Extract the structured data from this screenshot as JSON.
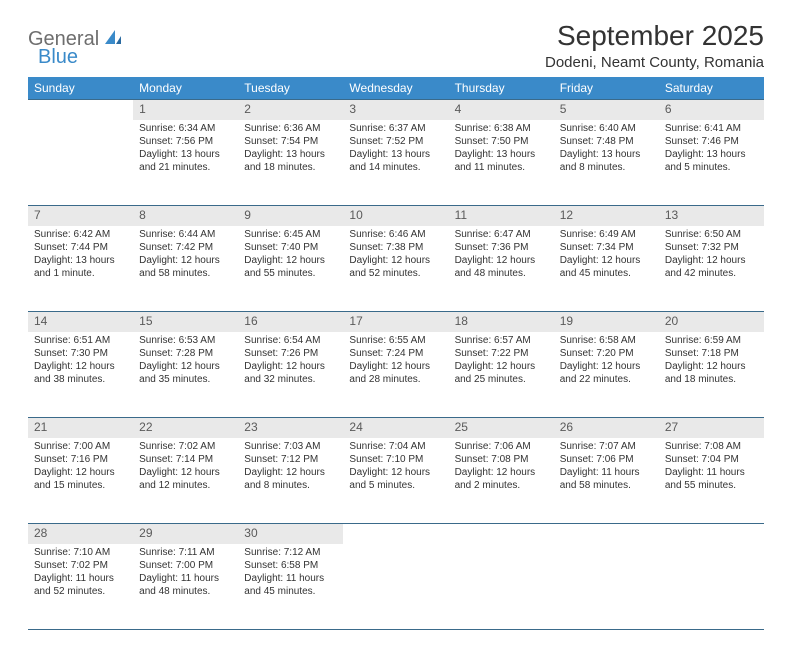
{
  "logo": {
    "text1": "General",
    "text2": "Blue"
  },
  "title": "September 2025",
  "location": "Dodeni, Neamt County, Romania",
  "colors": {
    "header_bg": "#3a8ac9",
    "header_text": "#ffffff",
    "daynum_bg": "#e9e9e9",
    "daynum_text": "#5a5a5a",
    "cell_text": "#333333",
    "rule": "#3a6a8a",
    "logo_gray": "#6e6e6e",
    "logo_blue": "#3a8ac9"
  },
  "weekdays": [
    "Sunday",
    "Monday",
    "Tuesday",
    "Wednesday",
    "Thursday",
    "Friday",
    "Saturday"
  ],
  "weeks": [
    {
      "nums": [
        "",
        "1",
        "2",
        "3",
        "4",
        "5",
        "6"
      ],
      "cells": [
        {
          "lines": []
        },
        {
          "lines": [
            "Sunrise: 6:34 AM",
            "Sunset: 7:56 PM",
            "Daylight: 13 hours and 21 minutes."
          ]
        },
        {
          "lines": [
            "Sunrise: 6:36 AM",
            "Sunset: 7:54 PM",
            "Daylight: 13 hours and 18 minutes."
          ]
        },
        {
          "lines": [
            "Sunrise: 6:37 AM",
            "Sunset: 7:52 PM",
            "Daylight: 13 hours and 14 minutes."
          ]
        },
        {
          "lines": [
            "Sunrise: 6:38 AM",
            "Sunset: 7:50 PM",
            "Daylight: 13 hours and 11 minutes."
          ]
        },
        {
          "lines": [
            "Sunrise: 6:40 AM",
            "Sunset: 7:48 PM",
            "Daylight: 13 hours and 8 minutes."
          ]
        },
        {
          "lines": [
            "Sunrise: 6:41 AM",
            "Sunset: 7:46 PM",
            "Daylight: 13 hours and 5 minutes."
          ]
        }
      ]
    },
    {
      "nums": [
        "7",
        "8",
        "9",
        "10",
        "11",
        "12",
        "13"
      ],
      "cells": [
        {
          "lines": [
            "Sunrise: 6:42 AM",
            "Sunset: 7:44 PM",
            "Daylight: 13 hours and 1 minute."
          ]
        },
        {
          "lines": [
            "Sunrise: 6:44 AM",
            "Sunset: 7:42 PM",
            "Daylight: 12 hours and 58 minutes."
          ]
        },
        {
          "lines": [
            "Sunrise: 6:45 AM",
            "Sunset: 7:40 PM",
            "Daylight: 12 hours and 55 minutes."
          ]
        },
        {
          "lines": [
            "Sunrise: 6:46 AM",
            "Sunset: 7:38 PM",
            "Daylight: 12 hours and 52 minutes."
          ]
        },
        {
          "lines": [
            "Sunrise: 6:47 AM",
            "Sunset: 7:36 PM",
            "Daylight: 12 hours and 48 minutes."
          ]
        },
        {
          "lines": [
            "Sunrise: 6:49 AM",
            "Sunset: 7:34 PM",
            "Daylight: 12 hours and 45 minutes."
          ]
        },
        {
          "lines": [
            "Sunrise: 6:50 AM",
            "Sunset: 7:32 PM",
            "Daylight: 12 hours and 42 minutes."
          ]
        }
      ]
    },
    {
      "nums": [
        "14",
        "15",
        "16",
        "17",
        "18",
        "19",
        "20"
      ],
      "cells": [
        {
          "lines": [
            "Sunrise: 6:51 AM",
            "Sunset: 7:30 PM",
            "Daylight: 12 hours and 38 minutes."
          ]
        },
        {
          "lines": [
            "Sunrise: 6:53 AM",
            "Sunset: 7:28 PM",
            "Daylight: 12 hours and 35 minutes."
          ]
        },
        {
          "lines": [
            "Sunrise: 6:54 AM",
            "Sunset: 7:26 PM",
            "Daylight: 12 hours and 32 minutes."
          ]
        },
        {
          "lines": [
            "Sunrise: 6:55 AM",
            "Sunset: 7:24 PM",
            "Daylight: 12 hours and 28 minutes."
          ]
        },
        {
          "lines": [
            "Sunrise: 6:57 AM",
            "Sunset: 7:22 PM",
            "Daylight: 12 hours and 25 minutes."
          ]
        },
        {
          "lines": [
            "Sunrise: 6:58 AM",
            "Sunset: 7:20 PM",
            "Daylight: 12 hours and 22 minutes."
          ]
        },
        {
          "lines": [
            "Sunrise: 6:59 AM",
            "Sunset: 7:18 PM",
            "Daylight: 12 hours and 18 minutes."
          ]
        }
      ]
    },
    {
      "nums": [
        "21",
        "22",
        "23",
        "24",
        "25",
        "26",
        "27"
      ],
      "cells": [
        {
          "lines": [
            "Sunrise: 7:00 AM",
            "Sunset: 7:16 PM",
            "Daylight: 12 hours and 15 minutes."
          ]
        },
        {
          "lines": [
            "Sunrise: 7:02 AM",
            "Sunset: 7:14 PM",
            "Daylight: 12 hours and 12 minutes."
          ]
        },
        {
          "lines": [
            "Sunrise: 7:03 AM",
            "Sunset: 7:12 PM",
            "Daylight: 12 hours and 8 minutes."
          ]
        },
        {
          "lines": [
            "Sunrise: 7:04 AM",
            "Sunset: 7:10 PM",
            "Daylight: 12 hours and 5 minutes."
          ]
        },
        {
          "lines": [
            "Sunrise: 7:06 AM",
            "Sunset: 7:08 PM",
            "Daylight: 12 hours and 2 minutes."
          ]
        },
        {
          "lines": [
            "Sunrise: 7:07 AM",
            "Sunset: 7:06 PM",
            "Daylight: 11 hours and 58 minutes."
          ]
        },
        {
          "lines": [
            "Sunrise: 7:08 AM",
            "Sunset: 7:04 PM",
            "Daylight: 11 hours and 55 minutes."
          ]
        }
      ]
    },
    {
      "nums": [
        "28",
        "29",
        "30",
        "",
        "",
        "",
        ""
      ],
      "cells": [
        {
          "lines": [
            "Sunrise: 7:10 AM",
            "Sunset: 7:02 PM",
            "Daylight: 11 hours and 52 minutes."
          ]
        },
        {
          "lines": [
            "Sunrise: 7:11 AM",
            "Sunset: 7:00 PM",
            "Daylight: 11 hours and 48 minutes."
          ]
        },
        {
          "lines": [
            "Sunrise: 7:12 AM",
            "Sunset: 6:58 PM",
            "Daylight: 11 hours and 45 minutes."
          ]
        },
        {
          "lines": []
        },
        {
          "lines": []
        },
        {
          "lines": []
        },
        {
          "lines": []
        }
      ]
    }
  ]
}
